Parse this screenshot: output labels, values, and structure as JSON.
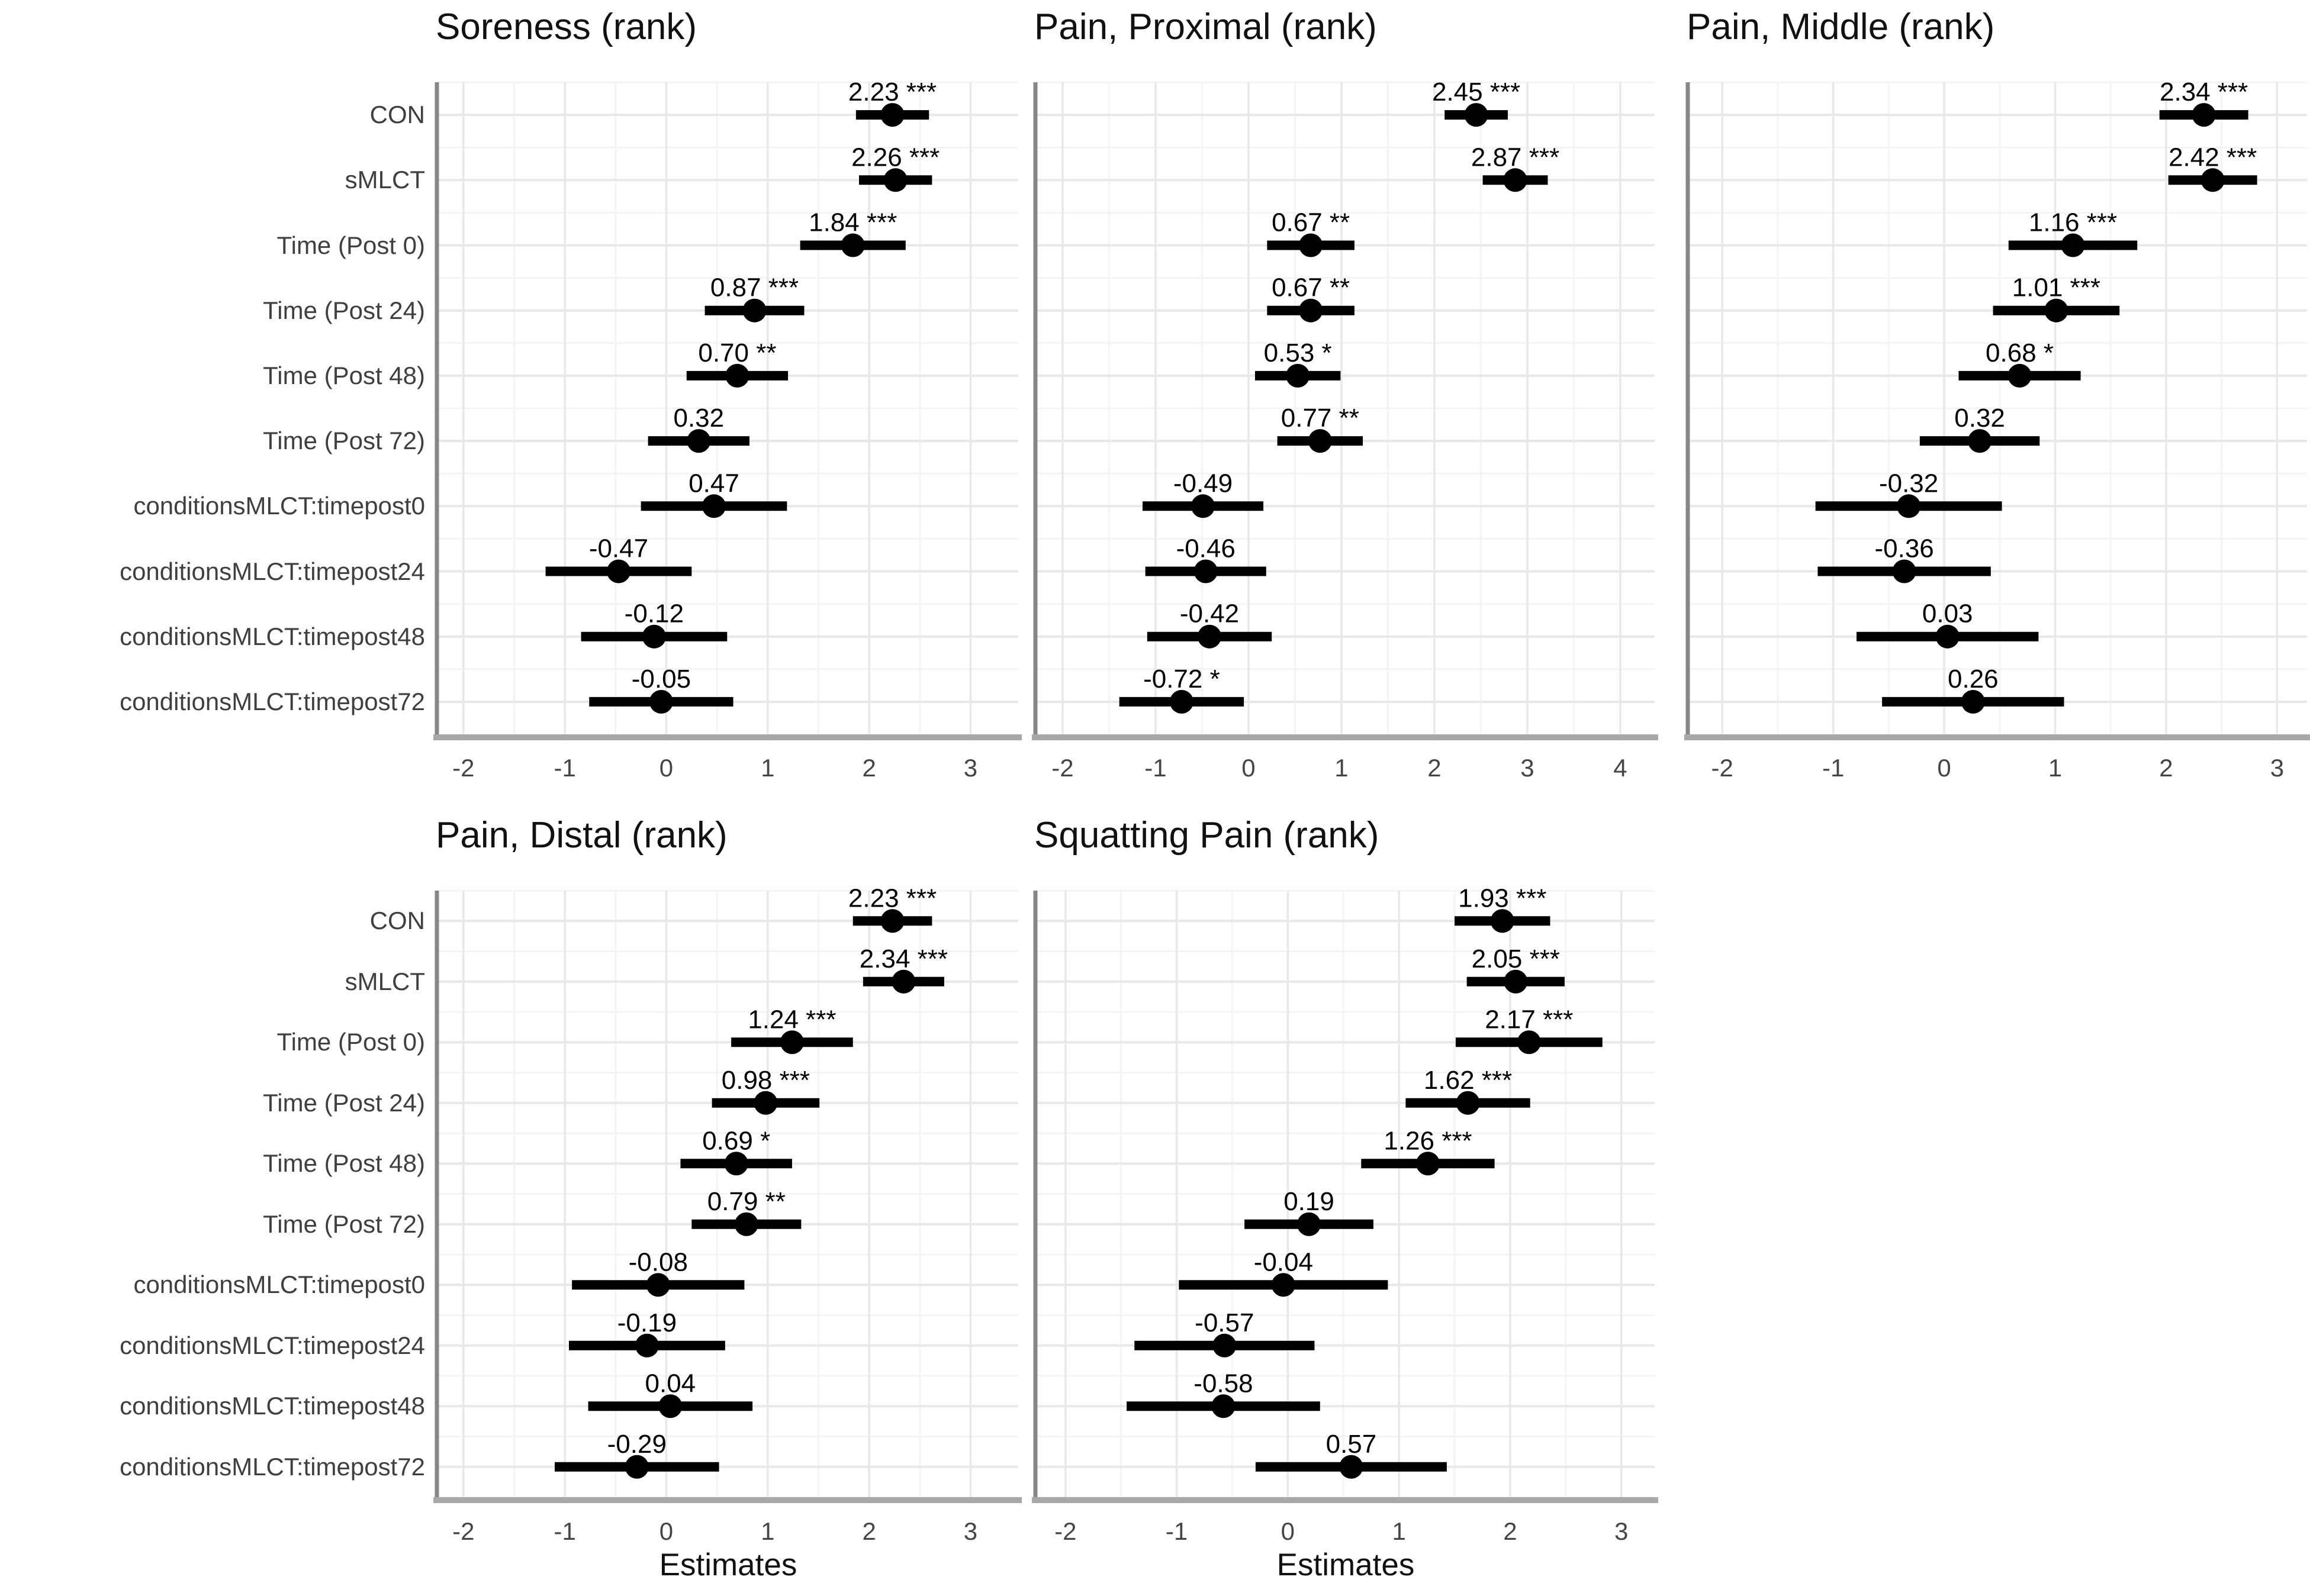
{
  "figure": {
    "background": "#ffffff"
  },
  "chart_data": {
    "type": "forest-dot-whisker",
    "x_axis_title": "Estimates",
    "grid": "on",
    "legend": "none",
    "categories": [
      "CON",
      "sMLCT",
      "Time (Post 0)",
      "Time (Post 24)",
      "Time (Post 48)",
      "Time (Post 72)",
      "conditionsMLCT:timepost0",
      "conditionsMLCT:timepost24",
      "conditionsMLCT:timepost48",
      "conditionsMLCT:timepost72"
    ],
    "colors": {
      "point": "#000000",
      "ci_line": "#000000",
      "estimate_label": "#000000",
      "grid_major": "#e8e8e8",
      "grid_minor": "#f4f4f4",
      "axis_left": "#878787",
      "axis_bottom": "#a8a8a8",
      "tick_text": "#454545",
      "category_text": "#3f3f3f",
      "title_text": "#111111"
    },
    "panels": [
      {
        "title": "Soreness (rank)",
        "col": 0,
        "row": 0,
        "show_y_labels": true,
        "show_x_title": false,
        "xlim": [
          -2.25,
          3.47
        ],
        "ticks": [
          "-2",
          "-1",
          "0",
          "1",
          "2",
          "3"
        ],
        "tick_values": [
          -2,
          -1,
          0,
          1,
          2,
          3
        ],
        "estimates": [
          {
            "label": "2.23 ***",
            "value": 2.23,
            "ci": [
              1.87,
              2.59
            ]
          },
          {
            "label": "2.26 ***",
            "value": 2.26,
            "ci": [
              1.9,
              2.62
            ]
          },
          {
            "label": "1.84 ***",
            "value": 1.84,
            "ci": [
              1.32,
              2.36
            ]
          },
          {
            "label": "0.87 ***",
            "value": 0.87,
            "ci": [
              0.38,
              1.36
            ]
          },
          {
            "label": "0.70 **",
            "value": 0.7,
            "ci": [
              0.2,
              1.2
            ]
          },
          {
            "label": "0.32",
            "value": 0.32,
            "ci": [
              -0.18,
              0.82
            ]
          },
          {
            "label": "0.47",
            "value": 0.47,
            "ci": [
              -0.25,
              1.19
            ]
          },
          {
            "label": "-0.47",
            "value": -0.47,
            "ci": [
              -1.19,
              0.25
            ]
          },
          {
            "label": "-0.12",
            "value": -0.12,
            "ci": [
              -0.84,
              0.6
            ]
          },
          {
            "label": "-0.05",
            "value": -0.05,
            "ci": [
              -0.76,
              0.66
            ]
          }
        ]
      },
      {
        "title": "Pain, Proximal (rank)",
        "col": 1,
        "row": 0,
        "show_y_labels": false,
        "show_x_title": false,
        "xlim": [
          -2.28,
          4.37
        ],
        "ticks": [
          "-2",
          "-1",
          "0",
          "1",
          "2",
          "3",
          "4"
        ],
        "tick_values": [
          -2,
          -1,
          0,
          1,
          2,
          3,
          4
        ],
        "estimates": [
          {
            "label": "2.45 ***",
            "value": 2.45,
            "ci": [
              2.11,
              2.79
            ]
          },
          {
            "label": "2.87 ***",
            "value": 2.87,
            "ci": [
              2.52,
              3.22
            ]
          },
          {
            "label": "0.67 **",
            "value": 0.67,
            "ci": [
              0.2,
              1.14
            ]
          },
          {
            "label": "0.67 **",
            "value": 0.67,
            "ci": [
              0.2,
              1.14
            ]
          },
          {
            "label": "0.53 *",
            "value": 0.53,
            "ci": [
              0.07,
              0.99
            ]
          },
          {
            "label": "0.77 **",
            "value": 0.77,
            "ci": [
              0.31,
              1.23
            ]
          },
          {
            "label": "-0.49",
            "value": -0.49,
            "ci": [
              -1.14,
              0.16
            ]
          },
          {
            "label": "-0.46",
            "value": -0.46,
            "ci": [
              -1.11,
              0.19
            ]
          },
          {
            "label": "-0.42",
            "value": -0.42,
            "ci": [
              -1.09,
              0.25
            ]
          },
          {
            "label": "-0.72 *",
            "value": -0.72,
            "ci": [
              -1.39,
              -0.05
            ]
          }
        ]
      },
      {
        "title": "Pain, Middle (rank)",
        "col": 2,
        "row": 0,
        "show_y_labels": false,
        "show_x_title": false,
        "xlim": [
          -2.3,
          3.27
        ],
        "ticks": [
          "-2",
          "-1",
          "0",
          "1",
          "2",
          "3"
        ],
        "tick_values": [
          -2,
          -1,
          0,
          1,
          2,
          3
        ],
        "estimates": [
          {
            "label": "2.34 ***",
            "value": 2.34,
            "ci": [
              1.94,
              2.74
            ]
          },
          {
            "label": "2.42 ***",
            "value": 2.42,
            "ci": [
              2.02,
              2.82
            ]
          },
          {
            "label": "1.16 ***",
            "value": 1.16,
            "ci": [
              0.58,
              1.74
            ]
          },
          {
            "label": "1.01 ***",
            "value": 1.01,
            "ci": [
              0.44,
              1.58
            ]
          },
          {
            "label": "0.68 *",
            "value": 0.68,
            "ci": [
              0.13,
              1.23
            ]
          },
          {
            "label": "0.32",
            "value": 0.32,
            "ci": [
              -0.22,
              0.86
            ]
          },
          {
            "label": "-0.32",
            "value": -0.32,
            "ci": [
              -1.16,
              0.52
            ]
          },
          {
            "label": "-0.36",
            "value": -0.36,
            "ci": [
              -1.14,
              0.42
            ]
          },
          {
            "label": "0.03",
            "value": 0.03,
            "ci": [
              -0.79,
              0.85
            ]
          },
          {
            "label": "0.26",
            "value": 0.26,
            "ci": [
              -0.56,
              1.08
            ]
          }
        ]
      },
      {
        "title": "Pain, Distal (rank)",
        "col": 0,
        "row": 1,
        "show_y_labels": true,
        "show_x_title": true,
        "xlim": [
          -2.25,
          3.47
        ],
        "ticks": [
          "-2",
          "-1",
          "0",
          "1",
          "2",
          "3"
        ],
        "tick_values": [
          -2,
          -1,
          0,
          1,
          2,
          3
        ],
        "estimates": [
          {
            "label": "2.23 ***",
            "value": 2.23,
            "ci": [
              1.84,
              2.62
            ]
          },
          {
            "label": "2.34 ***",
            "value": 2.34,
            "ci": [
              1.94,
              2.74
            ]
          },
          {
            "label": "1.24 ***",
            "value": 1.24,
            "ci": [
              0.64,
              1.84
            ]
          },
          {
            "label": "0.98 ***",
            "value": 0.98,
            "ci": [
              0.45,
              1.51
            ]
          },
          {
            "label": "0.69 *",
            "value": 0.69,
            "ci": [
              0.14,
              1.24
            ]
          },
          {
            "label": "0.79 **",
            "value": 0.79,
            "ci": [
              0.25,
              1.33
            ]
          },
          {
            "label": "-0.08",
            "value": -0.08,
            "ci": [
              -0.93,
              0.77
            ]
          },
          {
            "label": "-0.19",
            "value": -0.19,
            "ci": [
              -0.96,
              0.58
            ]
          },
          {
            "label": "0.04",
            "value": 0.04,
            "ci": [
              -0.77,
              0.85
            ]
          },
          {
            "label": "-0.29",
            "value": -0.29,
            "ci": [
              -1.1,
              0.52
            ]
          }
        ]
      },
      {
        "title": "Squatting Pain (rank)",
        "col": 1,
        "row": 1,
        "show_y_labels": false,
        "show_x_title": true,
        "xlim": [
          -2.26,
          3.3
        ],
        "ticks": [
          "-2",
          "-1",
          "0",
          "1",
          "2",
          "3"
        ],
        "tick_values": [
          -2,
          -1,
          0,
          1,
          2,
          3
        ],
        "estimates": [
          {
            "label": "1.93 ***",
            "value": 1.93,
            "ci": [
              1.5,
              2.36
            ]
          },
          {
            "label": "2.05 ***",
            "value": 2.05,
            "ci": [
              1.61,
              2.49
            ]
          },
          {
            "label": "2.17 ***",
            "value": 2.17,
            "ci": [
              1.51,
              2.83
            ]
          },
          {
            "label": "1.62 ***",
            "value": 1.62,
            "ci": [
              1.06,
              2.18
            ]
          },
          {
            "label": "1.26 ***",
            "value": 1.26,
            "ci": [
              0.66,
              1.86
            ]
          },
          {
            "label": "0.19",
            "value": 0.19,
            "ci": [
              -0.39,
              0.77
            ]
          },
          {
            "label": "-0.04",
            "value": -0.04,
            "ci": [
              -0.98,
              0.9
            ]
          },
          {
            "label": "-0.57",
            "value": -0.57,
            "ci": [
              -1.38,
              0.24
            ]
          },
          {
            "label": "-0.58",
            "value": -0.58,
            "ci": [
              -1.45,
              0.29
            ]
          },
          {
            "label": "0.57",
            "value": 0.57,
            "ci": [
              -0.29,
              1.43
            ]
          }
        ]
      }
    ]
  }
}
